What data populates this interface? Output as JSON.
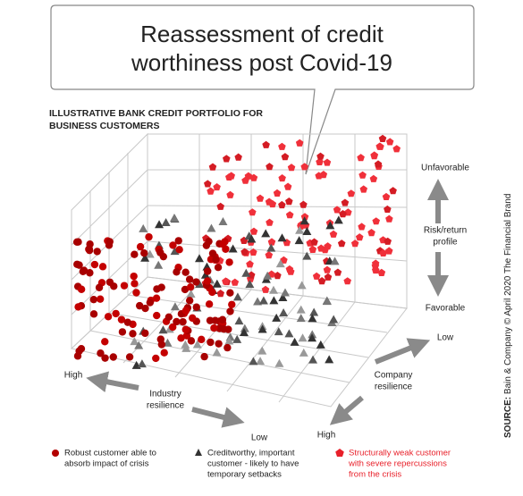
{
  "header": {
    "title": [
      "Reassessment of credit",
      "worthiness post Covid-19"
    ],
    "subtitle": [
      "ILLUSTRATIVE BANK CREDIT PORTFOLIO FOR",
      "BUSINESS CUSTOMERS"
    ]
  },
  "axes": {
    "risk": {
      "top": "Unfavorable",
      "label": [
        "Risk/return",
        "profile"
      ],
      "bottom": "Favorable"
    },
    "company": {
      "far": "Low",
      "label": [
        "Company",
        "resilience"
      ],
      "near": "High"
    },
    "industry": {
      "far": "High",
      "label": [
        "Industry",
        "resilience"
      ],
      "near": "Low"
    }
  },
  "legend": [
    {
      "lines": [
        "Robust customer able to",
        "absorb impact of crisis"
      ]
    },
    {
      "lines": [
        "Creditworthy, important",
        "customer - likely to have",
        "temporary setbacks"
      ]
    },
    {
      "lines": [
        "Structurally weak customer",
        "with severe repercussions",
        "from the crisis"
      ]
    }
  ],
  "source": {
    "label": "SOURCE:",
    "text": " Bain & Company © April 2020 The Financial Brand"
  }
}
